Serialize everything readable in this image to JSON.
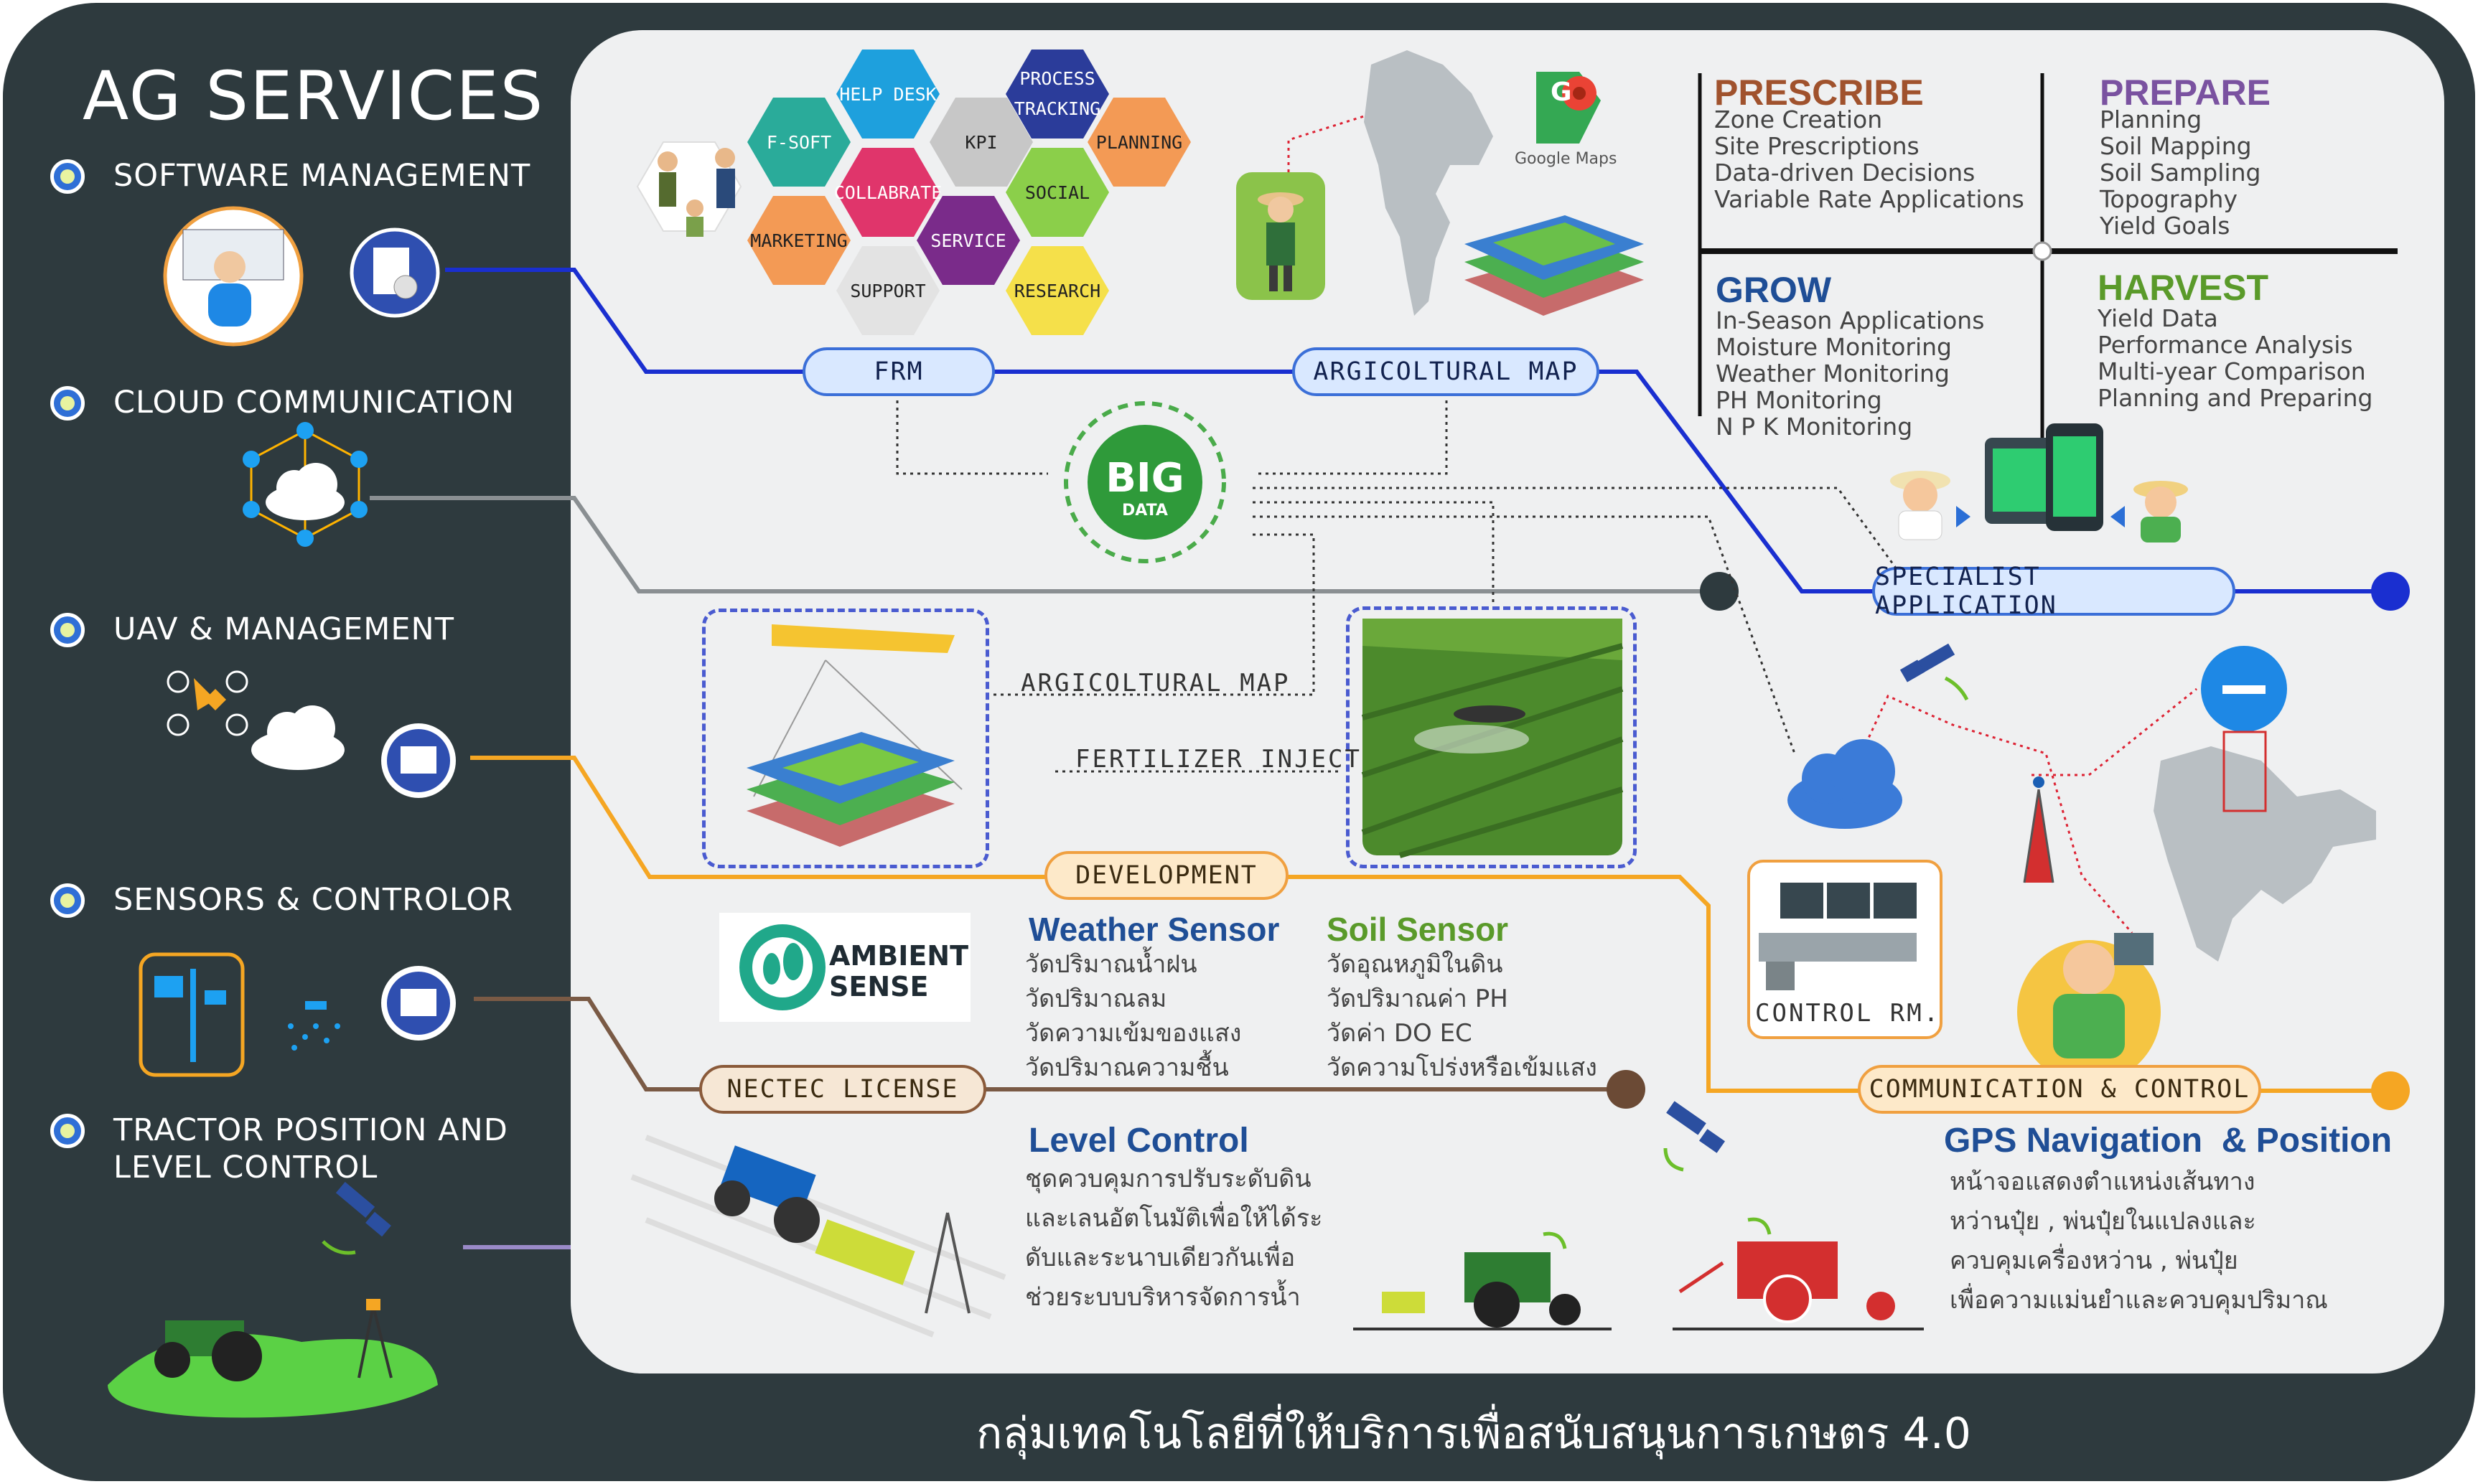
{
  "title": "AG SERVICES",
  "services": [
    {
      "label": "SOFTWARE MANAGEMENT"
    },
    {
      "label": "CLOUD COMMUNICATION"
    },
    {
      "label": "UAV & MANAGEMENT"
    },
    {
      "label": "SENSORS & CONTROLOR"
    },
    {
      "label": "TRACTOR POSITION AND",
      "label2": "LEVEL CONTROL"
    }
  ],
  "hexes": {
    "help_desk": "HELP DESK",
    "process": "PROCESS",
    "tracking": "TRACKING",
    "f_soft": "F-SOFT",
    "kpi": "KPI",
    "planning": "PLANNING",
    "collabrate": "COLLABRATE",
    "social": "SOCIAL",
    "marketing": "MARKETING",
    "service": "SERVICE",
    "support": "SUPPORT",
    "research": "RESEARCH"
  },
  "google_maps": "Google Maps",
  "pills": {
    "frm": "FRM",
    "agri_map_top": "ARGICOLTURAL MAP",
    "specialist": "SPECIALIST APPLICATION",
    "development": "DEVELOPMENT",
    "nectec": "NECTEC LICENSE",
    "comm_control": "COMMUNICATION & CONTROL"
  },
  "big_data": {
    "big": "BIG",
    "data": "DATA"
  },
  "labels": {
    "agri_map_mid": "ARGICOLTURAL MAP",
    "fertilizer": "FERTILIZER INJECT",
    "control_room": "CONTROL RM."
  },
  "quadrants": {
    "prescribe": {
      "title": "PRESCRIBE",
      "items": "Zone Creation\nSite Prescriptions\nData-driven Decisions\nVariable Rate Applications"
    },
    "prepare": {
      "title": "PREPARE",
      "items": "Planning\nSoil Mapping\nSoil Sampling\nTopography\nYield Goals"
    },
    "grow": {
      "title": "GROW",
      "items": "In-Season Applications\nMoisture Monitoring\nWeather Monitoring\nPH Monitoring\nN P K Monitoring"
    },
    "harvest": {
      "title": "HARVEST",
      "items": "Yield Data\nPerformance Analysis\nMulti-year Comparison\nPlanning and Preparing"
    }
  },
  "ambient": {
    "line1": "AMBIENT",
    "line2": "SENSE"
  },
  "weather_sensor": {
    "title": "Weather Sensor",
    "items": "วัดปริมาณน้ำฝน\nวัดปริมาณลม\nวัดความเข้มของแสง\nวัดปริมาณความชื้น"
  },
  "soil_sensor": {
    "title": "Soil Sensor",
    "items": "วัดอุณหภูมิในดิน\nวัดปริมาณค่า PH\nวัดค่า DO EC\nวัดความโปร่งหรือเข้มแสง"
  },
  "level_control": {
    "title": "Level Control",
    "items": "ชุดควบคุมการปรับระดับดิน\nและเลนอัตโนมัติเพื่อให้ได้ระ\nดับและระนาบเดียวกันเพื่อ\nช่วยระบบบริหารจัดการน้ำ"
  },
  "gps": {
    "title": "GPS Navigation  & Position",
    "items": "หน้าจอแสดงตำแหน่งเส้นทาง\nหว่านปุ๋ย , พ่นปุ๋ยในแปลงและ\nควบคุมเครื่องหว่าน , พ่นปุ๋ย\nเพื่อความแม่นยำและควบคุมปริมาณ"
  },
  "footer": "กลุ่มเทคโนโลยีที่ให้บริการเพื่อสนับสนุนการเกษตร 4.0",
  "colors": {
    "frame": "#2e3a3e",
    "panel": "#eff0f1",
    "blue_line": "#1a2fd0",
    "orange_line": "#f5a623",
    "brown_line": "#7a5a45",
    "gray_line": "#8a8f92",
    "prescribe": "#a0522d",
    "prepare": "#7a52a0",
    "grow": "#1f4e96",
    "harvest": "#5a9a2a"
  }
}
